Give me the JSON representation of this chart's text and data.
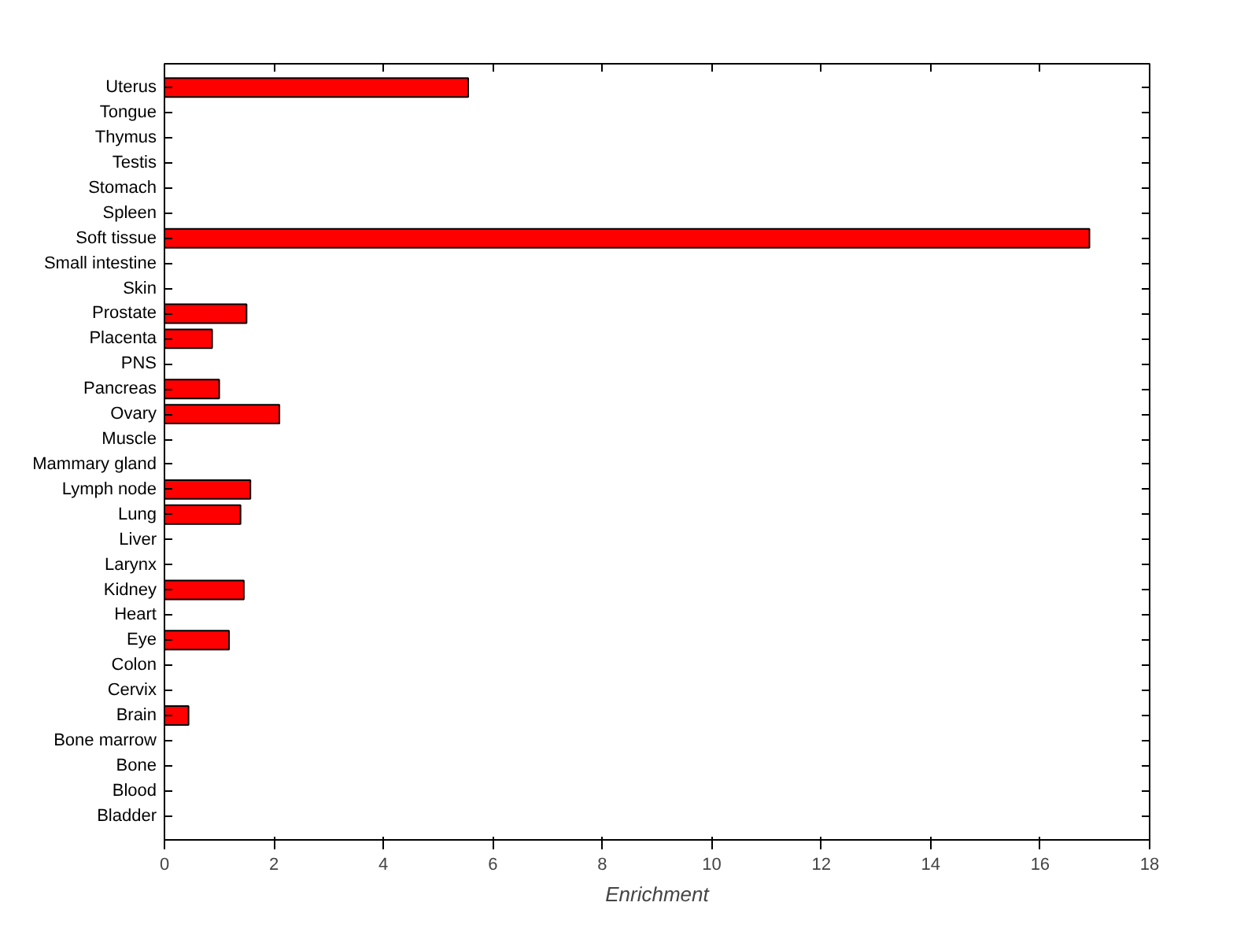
{
  "chart_data": {
    "type": "bar",
    "orientation": "horizontal",
    "xlabel": "Enrichment",
    "categories": [
      "Uterus",
      "Tongue",
      "Thymus",
      "Testis",
      "Stomach",
      "Spleen",
      "Soft tissue",
      "Small intestine",
      "Skin",
      "Prostate",
      "Placenta",
      "PNS",
      "Pancreas",
      "Ovary",
      "Muscle",
      "Mammary gland",
      "Lymph node",
      "Lung",
      "Liver",
      "Larynx",
      "Kidney",
      "Heart",
      "Eye",
      "Colon",
      "Cervix",
      "Brain",
      "Bone marrow",
      "Bone",
      "Blood",
      "Bladder"
    ],
    "values": [
      5.55,
      0,
      0,
      0,
      0,
      0,
      16.9,
      0,
      0,
      1.5,
      0.87,
      0,
      1.0,
      2.1,
      0,
      0,
      1.57,
      1.39,
      0,
      0,
      1.45,
      0,
      1.18,
      0,
      0,
      0.44,
      0,
      0,
      0,
      0
    ],
    "color": "#ff0000",
    "xlim": [
      0,
      18
    ],
    "xticks": [
      0,
      2,
      4,
      6,
      8,
      10,
      12,
      14,
      16,
      18
    ],
    "grid": false
  }
}
